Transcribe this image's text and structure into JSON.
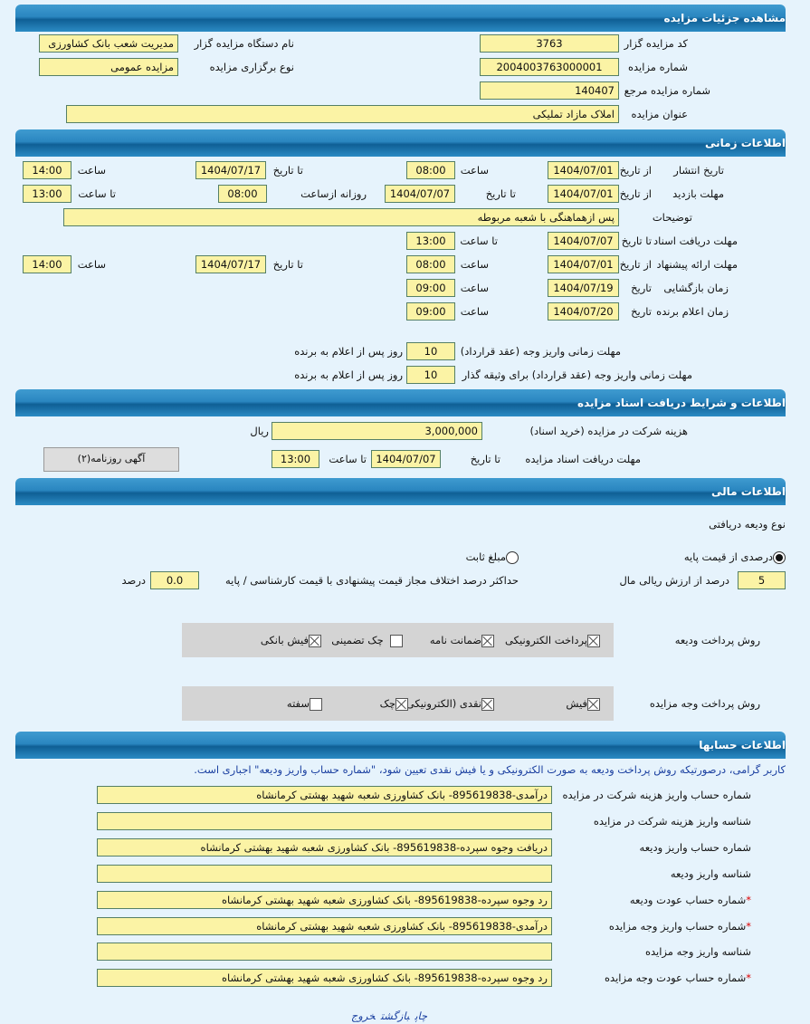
{
  "sections": {
    "details": "مشاهده جزئیات مزایده",
    "timing": "اطلاعات زمانی",
    "docs": "اطلاعات و شرایط دریافت اسناد مزایده",
    "financial": "اطلاعات مالی",
    "accounts": "اطلاعات حسابها"
  },
  "details": {
    "code_label": "کد مزایده گزار",
    "code": "3763",
    "org_label": "نام دستگاه مزایده گزار",
    "org": "مدیریت شعب بانک کشاورزی",
    "number_label": "شماره مزایده",
    "number": "2004003763000001",
    "type_label": "نوع برگزاری مزایده",
    "type": "مزایده عمومی",
    "ref_label": "شماره مزایده مرجع",
    "ref": "140407",
    "title_label": "عنوان مزایده",
    "title": "املاک مازاد تملیکی"
  },
  "labels": {
    "from_date": "از تاریخ",
    "to_date": "تا تاریخ",
    "date": "تاریخ",
    "time": "ساعت",
    "to_time": "تا ساعت",
    "daily_from": "روزانه ازساعت",
    "days_after": "روز پس از اعلام به برنده",
    "rial": "ریال",
    "percent": "درصد"
  },
  "timing": {
    "publish": {
      "label": "تاریخ انتشار",
      "from": "1404/07/01",
      "from_time": "08:00",
      "to": "1404/07/17",
      "to_time": "14:00"
    },
    "visit": {
      "label": "مهلت بازدید",
      "from": "1404/07/01",
      "to": "1404/07/07",
      "daily_from": "08:00",
      "to_time": "13:00"
    },
    "notes": {
      "label": "توضیحات",
      "value": "پس ازهماهنگی با شعبه مربوطه"
    },
    "docs_deadline": {
      "label": "مهلت دریافت اسناد",
      "to": "1404/07/07",
      "to_time": "13:00"
    },
    "offer": {
      "label": "مهلت ارائه پیشنهاد",
      "from": "1404/07/01",
      "from_time": "08:00",
      "to": "1404/07/17",
      "to_time": "14:00"
    },
    "opening": {
      "label": "زمان بازگشایی",
      "date": "1404/07/19",
      "time": "09:00"
    },
    "winner": {
      "label": "زمان اعلام برنده",
      "date": "1404/07/20",
      "time": "09:00"
    },
    "payment_deadline": {
      "label": "مهلت زمانی واریز وجه (عقد قرارداد)",
      "days": "10"
    },
    "collateral_deadline": {
      "label": "مهلت زمانی واریز وجه (عقد قرارداد) برای وثیقه گذار",
      "days": "10"
    }
  },
  "docs": {
    "fee_label": "هزینه شرکت در مزایده (خرید اسناد)",
    "fee": "3,000,000",
    "deadline_label": "مهلت دریافت اسناد مزایده",
    "deadline_date": "1404/07/07",
    "deadline_time": "13:00",
    "newspaper_button": "آگهی روزنامه(۲)"
  },
  "financial": {
    "deposit_type_label": "نوع ودیعه دریافتی",
    "radio_percent": "درصدی از قیمت پایه",
    "radio_fixed": "مبلغ ثابت",
    "selected": "درصدی از قیمت پایه",
    "percent_value": "5",
    "percent_label": "درصد از ارزش ریالی مال",
    "max_diff_label": "حداکثر درصد اختلاف مجاز قیمت پیشنهادی با قیمت کارشناسی / پایه",
    "max_diff": "0.0",
    "deposit_methods_label": "روش پرداخت ودیعه",
    "deposit_methods": [
      {
        "label": "پرداخت الکترونیکی",
        "checked": true
      },
      {
        "label": "ضمانت نامه",
        "checked": true
      },
      {
        "label": "چک تضمینی",
        "checked": false
      },
      {
        "label": "فیش بانکی",
        "checked": true
      }
    ],
    "payment_methods_label": "روش پرداخت وجه مزایده",
    "payment_methods": [
      {
        "label": "فیش",
        "checked": true
      },
      {
        "label": "نقدی (الکترونیکی)",
        "checked": true
      },
      {
        "label": "چک",
        "checked": true
      },
      {
        "label": "سفته",
        "checked": false
      }
    ]
  },
  "accounts": {
    "note": "کاربر گرامی، درصورتیکه روش پرداخت ودیعه به صورت الکترونیکی و یا فیش نقدی تعیین شود، \"شماره حساب واریز ودیعه\" اجباری است.",
    "rows": [
      {
        "label": "شماره حساب واریز هزینه شرکت در مزایده",
        "value": "درآمدی-895619838- بانک کشاورزی شعبه شهید بهشتی کرمانشاه",
        "required": false
      },
      {
        "label": "شناسه واریز هزینه شرکت در مزایده",
        "value": "",
        "required": false
      },
      {
        "label": "شماره حساب واریز ودیعه",
        "value": "دریافت وجوه سپرده-895619838- بانک کشاورزی شعبه شهید بهشتی کرمانشاه",
        "required": false
      },
      {
        "label": "شناسه واریز ودیعه",
        "value": "",
        "required": false
      },
      {
        "label": "شماره حساب عودت ودیعه",
        "value": "رد وجوه سپرده-895619838- بانک کشاورزی شعبه شهید بهشتی کرمانشاه",
        "required": true
      },
      {
        "label": "شماره حساب واریز وجه مزایده",
        "value": "درآمدی-895619838- بانک کشاورزی شعبه شهید بهشتی کرمانشاه",
        "required": true
      },
      {
        "label": "شناسه واریز وجه مزایده",
        "value": "",
        "required": false
      },
      {
        "label": "شماره حساب عودت وجه مزایده",
        "value": "رد وجوه سپرده-895619838- بانک کشاورزی شعبه شهید بهشتی کرمانشاه",
        "required": true
      }
    ]
  },
  "footer": {
    "print": "چاپ",
    "back": "بازگشت",
    "exit": "خروج"
  }
}
